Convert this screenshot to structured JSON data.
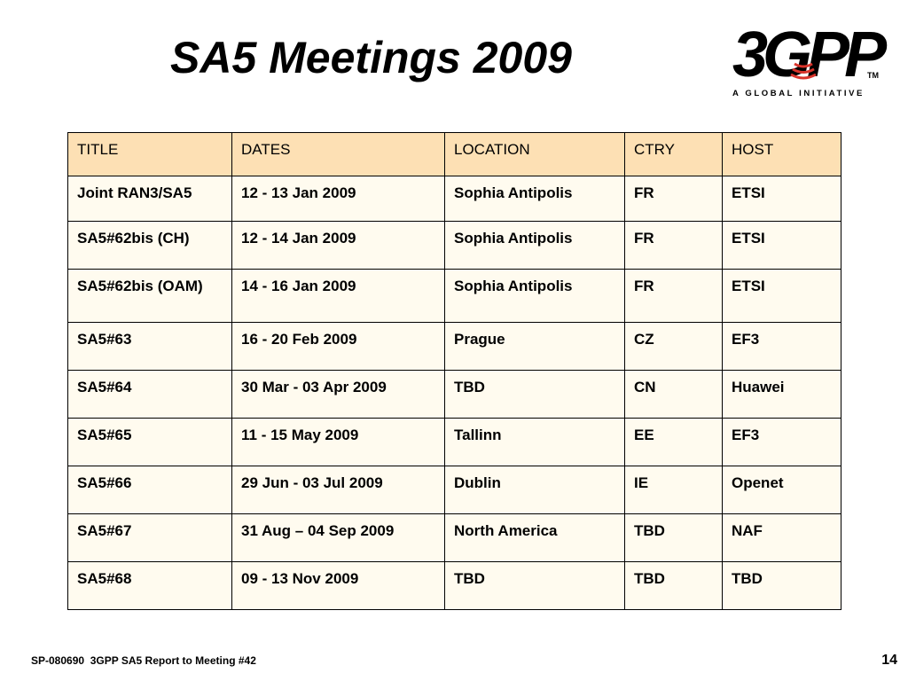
{
  "slide": {
    "title": "SA5 Meetings 2009",
    "logo_text": "3GPP",
    "logo_tm": "TM",
    "logo_tagline": "A GLOBAL INITIATIVE",
    "footer_left": "SP-080690  3GPP SA5 Report to Meeting #42",
    "page_number": "14"
  },
  "table": {
    "headers": [
      "TITLE",
      "DATES",
      "LOCATION",
      "CTRY",
      "HOST"
    ],
    "rows": [
      [
        "Joint RAN3/SA5",
        "12 - 13 Jan 2009",
        "Sophia Antipolis",
        "FR",
        "ETSI"
      ],
      [
        "SA5#62bis (CH)",
        "12 - 14 Jan 2009",
        "Sophia Antipolis",
        "FR",
        "ETSI"
      ],
      [
        "SA5#62bis (OAM)",
        "14 - 16 Jan 2009",
        "Sophia Antipolis",
        "FR",
        "ETSI"
      ],
      [
        "SA5#63",
        "16 - 20 Feb 2009",
        "Prague",
        "CZ",
        "EF3"
      ],
      [
        "SA5#64",
        "30 Mar - 03 Apr 2009",
        "TBD",
        "CN",
        "Huawei"
      ],
      [
        "SA5#65",
        "11 - 15 May 2009",
        "Tallinn",
        "EE",
        "EF3"
      ],
      [
        "SA5#66",
        "29 Jun - 03 Jul 2009",
        "Dublin",
        "IE",
        "Openet"
      ],
      [
        "SA5#67",
        "31 Aug – 04 Sep 2009",
        "North America",
        "TBD",
        "NAF"
      ],
      [
        "SA5#68",
        "09 - 13 Nov 2009",
        "TBD",
        "TBD",
        "TBD"
      ]
    ]
  },
  "colors": {
    "header_fill": "#fde0b4",
    "row_fill": "#fffbef",
    "logo_red": "#d9342b"
  }
}
